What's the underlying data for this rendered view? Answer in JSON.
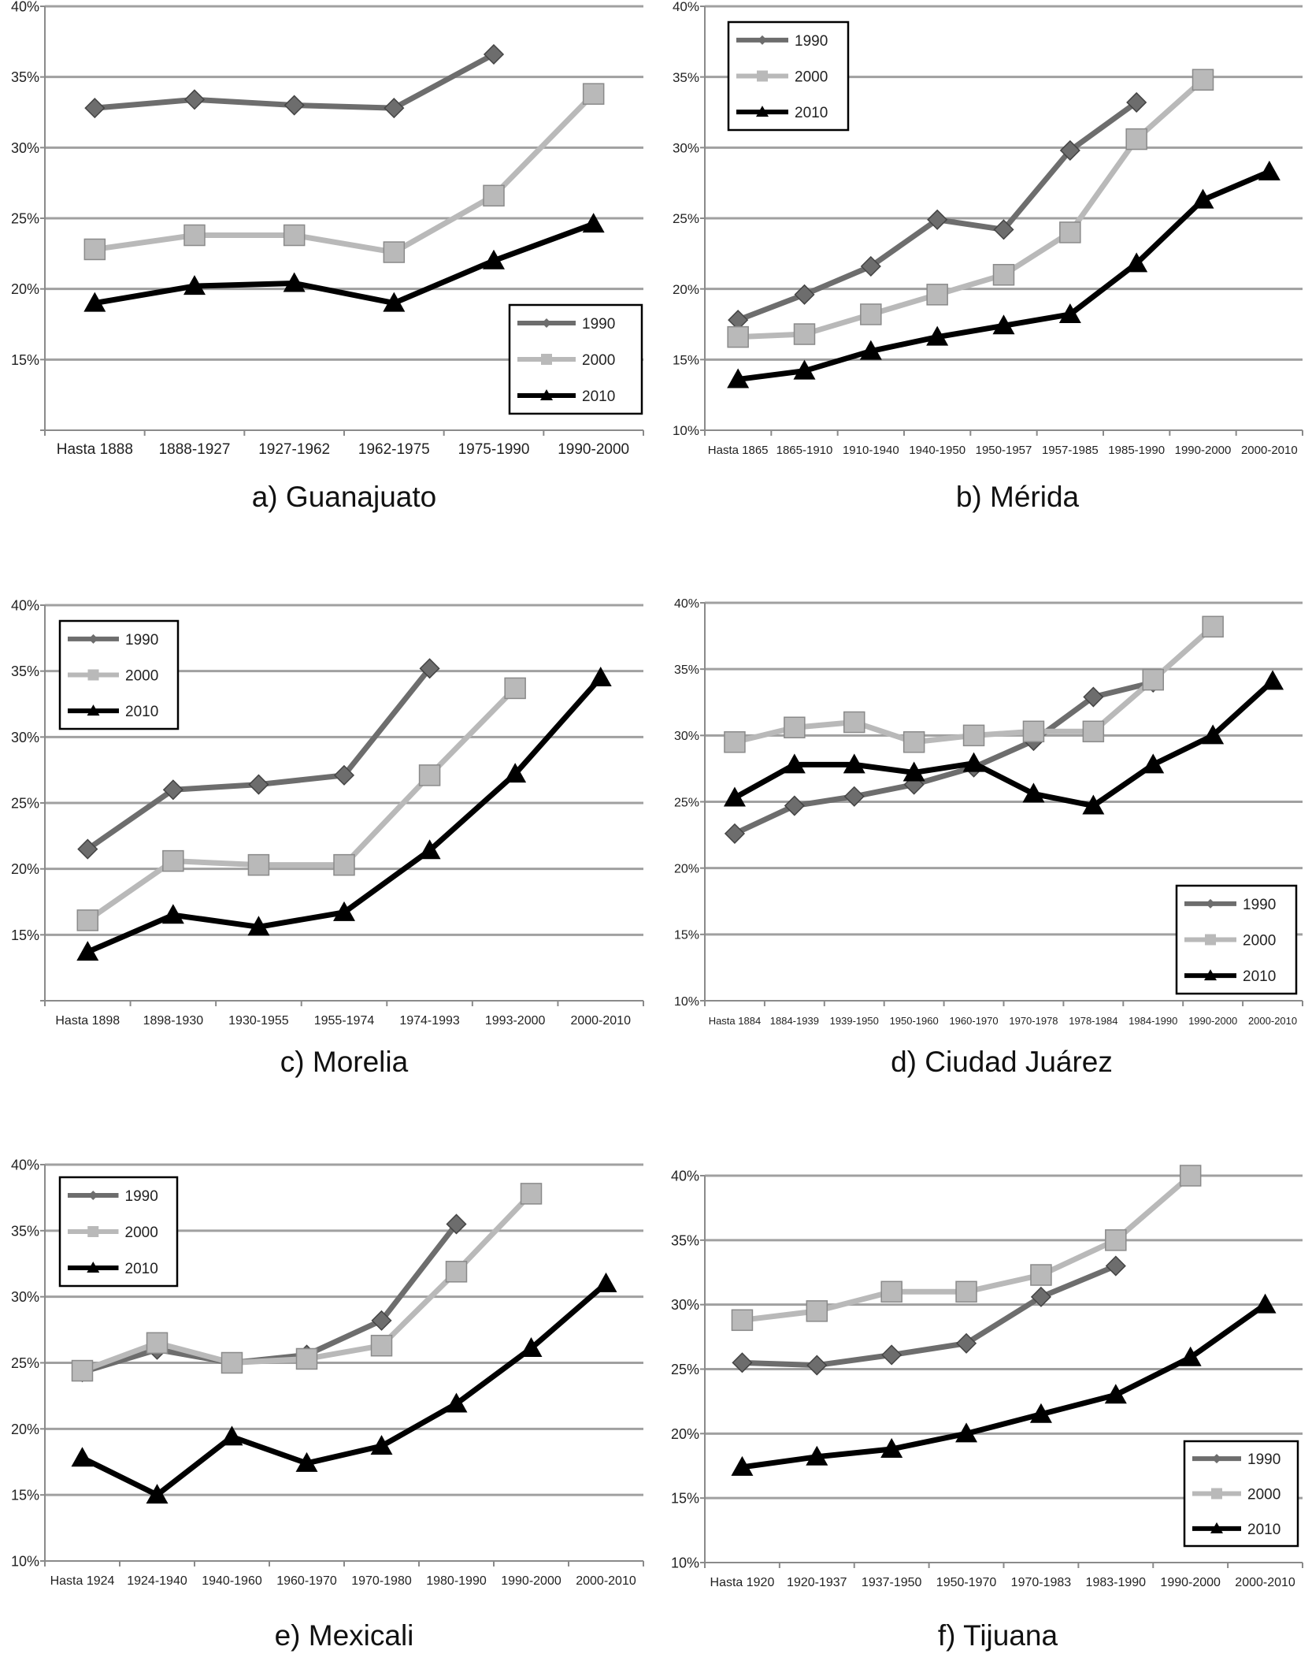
{
  "figure": {
    "styles": {
      "1990": {
        "color": "#6d6d6d",
        "marker": "diamond"
      },
      "2000": {
        "color": "#b9b9b9",
        "marker": "square"
      },
      "2010": {
        "color": "#000000",
        "marker": "triangle"
      }
    },
    "grid_color": "#a0a0a0"
  },
  "chart_data": [
    {
      "type": "line",
      "caption": "a) Guanajuato",
      "categories": [
        "Hasta 1888",
        "1888-1927",
        "1927-1962",
        "1962-1975",
        "1975-1990",
        "1990-2000"
      ],
      "yticks": [
        "15%",
        "20%",
        "25%",
        "30%",
        "35%",
        "40%"
      ],
      "ylim": [
        10,
        40
      ],
      "legend_position": "bottom-right",
      "series": [
        {
          "name": "1990",
          "values": [
            32.8,
            33.4,
            33.0,
            32.8,
            36.6,
            null
          ]
        },
        {
          "name": "2000",
          "values": [
            22.8,
            23.8,
            23.8,
            22.6,
            26.6,
            33.8
          ]
        },
        {
          "name": "2010",
          "values": [
            19.0,
            20.2,
            20.4,
            19.0,
            22.0,
            24.6
          ]
        }
      ]
    },
    {
      "type": "line",
      "caption": "b) Mérida",
      "categories": [
        "Hasta 1865",
        "1865-1910",
        "1910-1940",
        "1940-1950",
        "1950-1957",
        "1957-1985",
        "1985-1990",
        "1990-2000",
        "2000-2010"
      ],
      "yticks": [
        "10%",
        "15%",
        "20%",
        "25%",
        "30%",
        "35%",
        "40%"
      ],
      "ylim": [
        10,
        40
      ],
      "legend_position": "top-left",
      "series": [
        {
          "name": "1990",
          "values": [
            17.8,
            19.6,
            21.6,
            24.9,
            24.2,
            29.8,
            33.2,
            null,
            null
          ]
        },
        {
          "name": "2000",
          "values": [
            16.6,
            16.8,
            18.2,
            19.6,
            21.0,
            24.0,
            30.6,
            34.8,
            null
          ]
        },
        {
          "name": "2010",
          "values": [
            13.6,
            14.2,
            15.6,
            16.6,
            17.4,
            18.2,
            21.8,
            26.3,
            28.3
          ]
        }
      ]
    },
    {
      "type": "line",
      "caption": "c) Morelia",
      "categories": [
        "Hasta 1898",
        "1898-1930",
        "1930-1955",
        "1955-1974",
        "1974-1993",
        "1993-2000",
        "2000-2010"
      ],
      "yticks": [
        "15%",
        "20%",
        "25%",
        "30%",
        "35%",
        "40%"
      ],
      "ylim": [
        10,
        40
      ],
      "legend_position": "top-left",
      "series": [
        {
          "name": "1990",
          "values": [
            21.5,
            26.0,
            26.4,
            27.1,
            35.2,
            null,
            null
          ]
        },
        {
          "name": "2000",
          "values": [
            16.1,
            20.6,
            20.3,
            20.3,
            27.1,
            33.7,
            null
          ]
        },
        {
          "name": "2010",
          "values": [
            13.7,
            16.5,
            15.6,
            16.7,
            21.4,
            27.2,
            34.5
          ]
        }
      ]
    },
    {
      "type": "line",
      "caption": "d) Ciudad Juárez",
      "categories": [
        "Hasta 1884",
        "1884-1939",
        "1939-1950",
        "1950-1960",
        "1960-1970",
        "1970-1978",
        "1978-1984",
        "1984-1990",
        "1990-2000",
        "2000-2010"
      ],
      "yticks": [
        "10%",
        "15%",
        "20%",
        "25%",
        "30%",
        "35%",
        "40%"
      ],
      "ylim": [
        10,
        40
      ],
      "legend_position": "bottom-right",
      "series": [
        {
          "name": "1990",
          "values": [
            22.6,
            24.7,
            25.4,
            26.3,
            27.6,
            29.6,
            32.9,
            34.0,
            null,
            null
          ]
        },
        {
          "name": "2000",
          "values": [
            29.5,
            30.6,
            31.0,
            29.5,
            30.0,
            30.3,
            30.3,
            34.2,
            38.2,
            null
          ]
        },
        {
          "name": "2010",
          "values": [
            25.3,
            27.8,
            27.8,
            27.2,
            27.9,
            25.6,
            24.7,
            27.8,
            30.0,
            34.1
          ]
        }
      ]
    },
    {
      "type": "line",
      "caption": "e) Mexicali",
      "categories": [
        "Hasta 1924",
        "1924-1940",
        "1940-1960",
        "1960-1970",
        "1970-1980",
        "1980-1990",
        "1990-2000",
        "2000-2010"
      ],
      "yticks": [
        "10%",
        "15%",
        "20%",
        "25%",
        "30%",
        "35%",
        "40%"
      ],
      "ylim": [
        10,
        40
      ],
      "legend_position": "top-left",
      "series": [
        {
          "name": "1990",
          "values": [
            24.3,
            26.0,
            25.0,
            25.6,
            28.2,
            35.5,
            null,
            null
          ]
        },
        {
          "name": "2000",
          "values": [
            24.4,
            26.5,
            25.0,
            25.3,
            26.3,
            31.9,
            37.8,
            null
          ]
        },
        {
          "name": "2010",
          "values": [
            17.8,
            15.0,
            19.4,
            17.4,
            18.7,
            21.9,
            26.1,
            31.0
          ]
        }
      ]
    },
    {
      "type": "line",
      "caption": "f) Tijuana",
      "categories": [
        "Hasta 1920",
        "1920-1937",
        "1937-1950",
        "1950-1970",
        "1970-1983",
        "1983-1990",
        "1990-2000",
        "2000-2010"
      ],
      "yticks": [
        "10%",
        "15%",
        "20%",
        "25%",
        "30%",
        "35%",
        "40%"
      ],
      "ylim": [
        10,
        40
      ],
      "legend_position": "bottom-right",
      "series": [
        {
          "name": "1990",
          "values": [
            25.5,
            25.3,
            26.1,
            27.0,
            30.6,
            33.0,
            null,
            null
          ]
        },
        {
          "name": "2000",
          "values": [
            28.8,
            29.5,
            31.0,
            31.0,
            32.3,
            35.0,
            40.0,
            null
          ]
        },
        {
          "name": "2010",
          "values": [
            17.4,
            18.2,
            18.8,
            20.0,
            21.5,
            23.0,
            25.9,
            30.0
          ]
        }
      ]
    }
  ]
}
